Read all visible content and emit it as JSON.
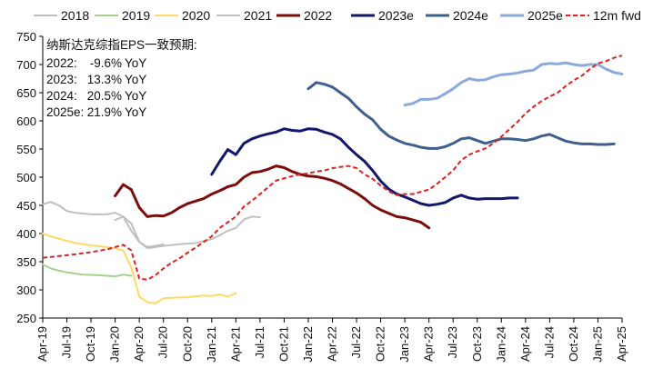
{
  "chart_data": {
    "type": "line",
    "title": "",
    "xlabel": "",
    "ylabel": "",
    "ylim": [
      250,
      750
    ],
    "yticks": [
      250,
      300,
      350,
      400,
      450,
      500,
      550,
      600,
      650,
      700,
      750
    ],
    "xticks": [
      "Apr-19",
      "Jul-19",
      "Oct-19",
      "Jan-20",
      "Apr-20",
      "Jul-20",
      "Oct-20",
      "Jan-21",
      "Apr-21",
      "Jul-21",
      "Oct-21",
      "Jan-22",
      "Apr-22",
      "Jul-22",
      "Oct-22",
      "Jan-23",
      "Apr-23",
      "Jul-23",
      "Oct-23",
      "Jan-24",
      "Apr-24",
      "Jul-24",
      "Oct-24",
      "Jan-25",
      "Apr-25"
    ],
    "xlim": [
      "2019-04",
      "2025-04"
    ],
    "grid": false,
    "legend": "top",
    "annotation": {
      "title": "纳斯达克综指EPS一致预期:",
      "lines": [
        {
          "label": "2022:",
          "value": "-9.6% YoY"
        },
        {
          "label": "2023:",
          "value": "13.3% YoY"
        },
        {
          "label": "2024:",
          "value": "20.5% YoY"
        },
        {
          "label": "2025e:",
          "value": "21.9% YoY"
        }
      ]
    },
    "series": [
      {
        "name": "2018",
        "color": "#bfbfbf",
        "dash": false,
        "width": 2,
        "points": [
          [
            "2019-04",
            452
          ],
          [
            "2019-05",
            456
          ],
          [
            "2019-06",
            450
          ],
          [
            "2019-07",
            440
          ],
          [
            "2019-08",
            437
          ],
          [
            "2019-10",
            434
          ],
          [
            "2019-12",
            434
          ],
          [
            "2020-01",
            437
          ],
          [
            "2020-02",
            430
          ],
          [
            "2020-03",
            405
          ],
          [
            "2020-04",
            385
          ],
          [
            "2020-05",
            376
          ],
          [
            "2020-06",
            378
          ],
          [
            "2020-07",
            381
          ]
        ]
      },
      {
        "name": "2019",
        "color": "#a9d18e",
        "dash": false,
        "width": 2,
        "points": [
          [
            "2019-04",
            345
          ],
          [
            "2019-05",
            338
          ],
          [
            "2019-06",
            334
          ],
          [
            "2019-07",
            331
          ],
          [
            "2019-09",
            327
          ],
          [
            "2019-11",
            326
          ],
          [
            "2020-01",
            324
          ],
          [
            "2020-02",
            327
          ],
          [
            "2020-03",
            325
          ]
        ]
      },
      {
        "name": "2020",
        "color": "#ffd966",
        "dash": false,
        "width": 2,
        "points": [
          [
            "2019-04",
            400
          ],
          [
            "2019-05",
            395
          ],
          [
            "2019-06",
            391
          ],
          [
            "2019-07",
            387
          ],
          [
            "2019-08",
            383
          ],
          [
            "2019-10",
            379
          ],
          [
            "2019-12",
            376
          ],
          [
            "2020-01",
            374
          ],
          [
            "2020-02",
            370
          ],
          [
            "2020-03",
            340
          ],
          [
            "2020-04",
            288
          ],
          [
            "2020-05",
            278
          ],
          [
            "2020-06",
            276
          ],
          [
            "2020-07",
            285
          ],
          [
            "2020-08",
            286
          ],
          [
            "2020-10",
            287
          ],
          [
            "2020-12",
            290
          ],
          [
            "2021-01",
            289
          ],
          [
            "2021-02",
            292
          ],
          [
            "2021-03",
            288
          ],
          [
            "2021-04",
            294
          ]
        ]
      },
      {
        "name": "2021",
        "color": "#c0c0c0",
        "dash": false,
        "width": 2,
        "points": [
          [
            "2020-01",
            424
          ],
          [
            "2020-02",
            430
          ],
          [
            "2020-03",
            418
          ],
          [
            "2020-04",
            385
          ],
          [
            "2020-05",
            374
          ],
          [
            "2020-06",
            376
          ],
          [
            "2020-07",
            378
          ],
          [
            "2020-09",
            381
          ],
          [
            "2020-11",
            383
          ],
          [
            "2021-01",
            390
          ],
          [
            "2021-02",
            397
          ],
          [
            "2021-03",
            405
          ],
          [
            "2021-04",
            410
          ],
          [
            "2021-05",
            425
          ],
          [
            "2021-06",
            430
          ],
          [
            "2021-07",
            429
          ]
        ]
      },
      {
        "name": "2022",
        "color": "#7b0d0d",
        "dash": false,
        "width": 3,
        "points": [
          [
            "2020-01",
            467
          ],
          [
            "2020-02",
            487
          ],
          [
            "2020-03",
            478
          ],
          [
            "2020-04",
            446
          ],
          [
            "2020-05",
            430
          ],
          [
            "2020-06",
            432
          ],
          [
            "2020-07",
            431
          ],
          [
            "2020-08",
            437
          ],
          [
            "2020-09",
            446
          ],
          [
            "2020-10",
            453
          ],
          [
            "2020-12",
            462
          ],
          [
            "2021-01",
            470
          ],
          [
            "2021-02",
            476
          ],
          [
            "2021-03",
            483
          ],
          [
            "2021-04",
            487
          ],
          [
            "2021-05",
            500
          ],
          [
            "2021-06",
            508
          ],
          [
            "2021-07",
            510
          ],
          [
            "2021-08",
            514
          ],
          [
            "2021-09",
            520
          ],
          [
            "2021-10",
            517
          ],
          [
            "2021-11",
            510
          ],
          [
            "2021-12",
            505
          ],
          [
            "2022-01",
            502
          ],
          [
            "2022-02",
            501
          ],
          [
            "2022-03",
            498
          ],
          [
            "2022-04",
            494
          ],
          [
            "2022-05",
            488
          ],
          [
            "2022-06",
            480
          ],
          [
            "2022-07",
            472
          ],
          [
            "2022-08",
            462
          ],
          [
            "2022-09",
            450
          ],
          [
            "2022-10",
            442
          ],
          [
            "2022-11",
            436
          ],
          [
            "2022-12",
            430
          ],
          [
            "2023-01",
            428
          ],
          [
            "2023-02",
            424
          ],
          [
            "2023-03",
            420
          ],
          [
            "2023-04",
            410
          ]
        ]
      },
      {
        "name": "2023e",
        "color": "#13176b",
        "dash": false,
        "width": 3,
        "points": [
          [
            "2021-01",
            505
          ],
          [
            "2021-02",
            528
          ],
          [
            "2021-03",
            549
          ],
          [
            "2021-04",
            540
          ],
          [
            "2021-05",
            560
          ],
          [
            "2021-06",
            568
          ],
          [
            "2021-07",
            573
          ],
          [
            "2021-08",
            577
          ],
          [
            "2021-09",
            580
          ],
          [
            "2021-10",
            586
          ],
          [
            "2021-11",
            583
          ],
          [
            "2021-12",
            582
          ],
          [
            "2022-01",
            586
          ],
          [
            "2022-02",
            585
          ],
          [
            "2022-03",
            580
          ],
          [
            "2022-04",
            576
          ],
          [
            "2022-05",
            568
          ],
          [
            "2022-06",
            553
          ],
          [
            "2022-07",
            540
          ],
          [
            "2022-08",
            528
          ],
          [
            "2022-09",
            512
          ],
          [
            "2022-10",
            493
          ],
          [
            "2022-11",
            479
          ],
          [
            "2022-12",
            470
          ],
          [
            "2023-01",
            465
          ],
          [
            "2023-02",
            459
          ],
          [
            "2023-03",
            453
          ],
          [
            "2023-04",
            450
          ],
          [
            "2023-05",
            452
          ],
          [
            "2023-06",
            455
          ],
          [
            "2023-07",
            463
          ],
          [
            "2023-08",
            468
          ],
          [
            "2023-09",
            463
          ],
          [
            "2023-10",
            461
          ],
          [
            "2023-11",
            462
          ],
          [
            "2023-12",
            462
          ],
          [
            "2024-01",
            462
          ],
          [
            "2024-02",
            463
          ],
          [
            "2024-03",
            463
          ]
        ]
      },
      {
        "name": "2024e",
        "color": "#3f5f8f",
        "dash": false,
        "width": 3,
        "points": [
          [
            "2022-01",
            657
          ],
          [
            "2022-02",
            668
          ],
          [
            "2022-03",
            665
          ],
          [
            "2022-04",
            660
          ],
          [
            "2022-05",
            650
          ],
          [
            "2022-06",
            640
          ],
          [
            "2022-07",
            625
          ],
          [
            "2022-08",
            612
          ],
          [
            "2022-09",
            602
          ],
          [
            "2022-10",
            585
          ],
          [
            "2022-11",
            573
          ],
          [
            "2022-12",
            566
          ],
          [
            "2023-01",
            560
          ],
          [
            "2023-02",
            557
          ],
          [
            "2023-03",
            553
          ],
          [
            "2023-04",
            551
          ],
          [
            "2023-05",
            551
          ],
          [
            "2023-06",
            554
          ],
          [
            "2023-07",
            560
          ],
          [
            "2023-08",
            568
          ],
          [
            "2023-09",
            570
          ],
          [
            "2023-10",
            565
          ],
          [
            "2023-11",
            560
          ],
          [
            "2023-12",
            564
          ],
          [
            "2024-01",
            568
          ],
          [
            "2024-02",
            568
          ],
          [
            "2024-03",
            567
          ],
          [
            "2024-04",
            565
          ],
          [
            "2024-05",
            568
          ],
          [
            "2024-06",
            573
          ],
          [
            "2024-07",
            576
          ],
          [
            "2024-08",
            570
          ],
          [
            "2024-09",
            564
          ],
          [
            "2024-10",
            561
          ],
          [
            "2024-11",
            559
          ],
          [
            "2024-12",
            559
          ],
          [
            "2025-01",
            558
          ],
          [
            "2025-02",
            558
          ],
          [
            "2025-03",
            559
          ]
        ]
      },
      {
        "name": "2025e",
        "color": "#8eaadb",
        "dash": false,
        "width": 3,
        "points": [
          [
            "2023-01",
            628
          ],
          [
            "2023-02",
            631
          ],
          [
            "2023-03",
            638
          ],
          [
            "2023-04",
            638
          ],
          [
            "2023-05",
            640
          ],
          [
            "2023-06",
            648
          ],
          [
            "2023-07",
            657
          ],
          [
            "2023-08",
            668
          ],
          [
            "2023-09",
            675
          ],
          [
            "2023-10",
            672
          ],
          [
            "2023-11",
            673
          ],
          [
            "2023-12",
            678
          ],
          [
            "2024-01",
            682
          ],
          [
            "2024-02",
            683
          ],
          [
            "2024-03",
            685
          ],
          [
            "2024-04",
            688
          ],
          [
            "2024-05",
            690
          ],
          [
            "2024-06",
            700
          ],
          [
            "2024-07",
            702
          ],
          [
            "2024-08",
            701
          ],
          [
            "2024-09",
            703
          ],
          [
            "2024-10",
            700
          ],
          [
            "2024-11",
            698
          ],
          [
            "2024-12",
            700
          ],
          [
            "2025-01",
            700
          ],
          [
            "2025-02",
            692
          ],
          [
            "2025-03",
            686
          ],
          [
            "2025-04",
            683
          ]
        ]
      },
      {
        "name": "12m fwd",
        "color": "#e02020",
        "dash": true,
        "width": 2,
        "points": [
          [
            "2019-04",
            357
          ],
          [
            "2019-06",
            360
          ],
          [
            "2019-08",
            363
          ],
          [
            "2019-10",
            367
          ],
          [
            "2019-12",
            372
          ],
          [
            "2020-02",
            380
          ],
          [
            "2020-03",
            370
          ],
          [
            "2020-04",
            320
          ],
          [
            "2020-05",
            318
          ],
          [
            "2020-06",
            326
          ],
          [
            "2020-07",
            338
          ],
          [
            "2020-08",
            348
          ],
          [
            "2020-09",
            356
          ],
          [
            "2020-10",
            366
          ],
          [
            "2020-11",
            375
          ],
          [
            "2020-12",
            385
          ],
          [
            "2021-01",
            395
          ],
          [
            "2021-02",
            410
          ],
          [
            "2021-03",
            420
          ],
          [
            "2021-04",
            430
          ],
          [
            "2021-05",
            448
          ],
          [
            "2021-06",
            458
          ],
          [
            "2021-07",
            470
          ],
          [
            "2021-08",
            482
          ],
          [
            "2021-09",
            494
          ],
          [
            "2021-10",
            498
          ],
          [
            "2021-11",
            502
          ],
          [
            "2021-12",
            505
          ],
          [
            "2022-01",
            507
          ],
          [
            "2022-02",
            510
          ],
          [
            "2022-03",
            512
          ],
          [
            "2022-04",
            516
          ],
          [
            "2022-05",
            518
          ],
          [
            "2022-06",
            520
          ],
          [
            "2022-07",
            516
          ],
          [
            "2022-08",
            505
          ],
          [
            "2022-09",
            497
          ],
          [
            "2022-10",
            485
          ],
          [
            "2022-11",
            475
          ],
          [
            "2022-12",
            468
          ],
          [
            "2023-01",
            470
          ],
          [
            "2023-02",
            470
          ],
          [
            "2023-03",
            474
          ],
          [
            "2023-04",
            478
          ],
          [
            "2023-05",
            488
          ],
          [
            "2023-06",
            500
          ],
          [
            "2023-07",
            512
          ],
          [
            "2023-08",
            530
          ],
          [
            "2023-09",
            540
          ],
          [
            "2023-10",
            546
          ],
          [
            "2023-11",
            551
          ],
          [
            "2023-12",
            560
          ],
          [
            "2024-01",
            572
          ],
          [
            "2024-02",
            585
          ],
          [
            "2024-03",
            598
          ],
          [
            "2024-04",
            613
          ],
          [
            "2024-05",
            625
          ],
          [
            "2024-06",
            635
          ],
          [
            "2024-07",
            643
          ],
          [
            "2024-08",
            650
          ],
          [
            "2024-09",
            662
          ],
          [
            "2024-10",
            672
          ],
          [
            "2024-11",
            680
          ],
          [
            "2024-12",
            692
          ],
          [
            "2025-01",
            702
          ],
          [
            "2025-02",
            706
          ],
          [
            "2025-03",
            712
          ],
          [
            "2025-04",
            716
          ]
        ]
      }
    ]
  }
}
